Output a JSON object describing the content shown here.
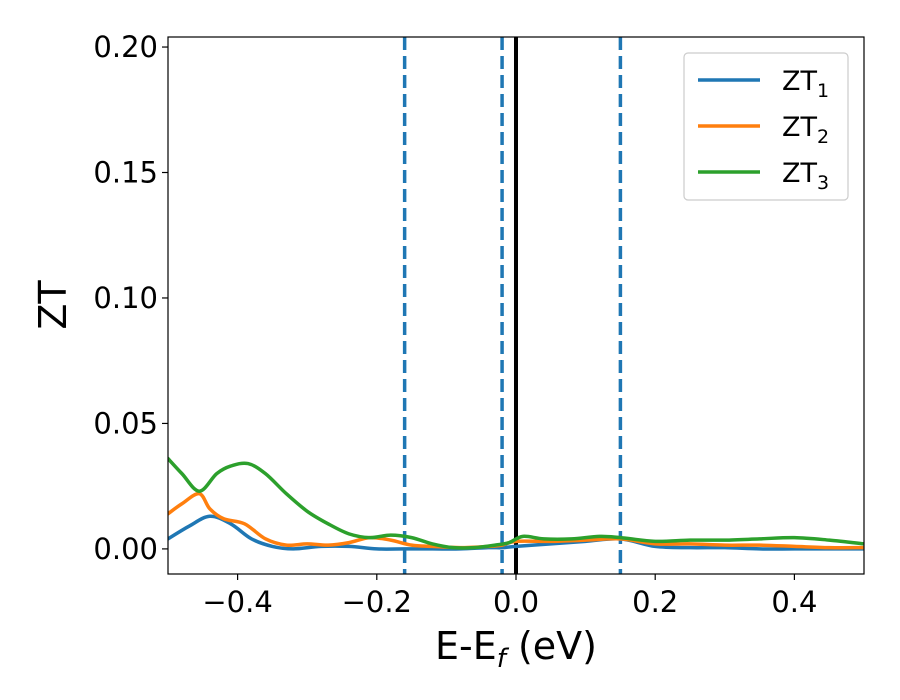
{
  "chart_data": {
    "type": "line",
    "xlabel": "E-E",
    "xlabel_sub": "f",
    "xlabel_unit": " (eV)",
    "ylabel": "ZT",
    "xlim": [
      -0.5,
      0.5
    ],
    "ylim": [
      -0.01,
      0.204
    ],
    "xticks": [
      -0.4,
      -0.2,
      0.0,
      0.2,
      0.4
    ],
    "xtick_labels": [
      "−0.4",
      "−0.2",
      "0.0",
      "0.2",
      "0.4"
    ],
    "yticks": [
      0.0,
      0.05,
      0.1,
      0.15,
      0.2
    ],
    "ytick_labels": [
      "0.00",
      "0.05",
      "0.10",
      "0.15",
      "0.20"
    ],
    "grid": false,
    "legend_position": "top-right",
    "vlines": [
      {
        "x": -0.16,
        "style": "dashed",
        "color": "#1f77b4"
      },
      {
        "x": -0.02,
        "style": "dashed",
        "color": "#1f77b4"
      },
      {
        "x": 0.0,
        "style": "solid",
        "color": "#000000"
      },
      {
        "x": 0.15,
        "style": "dashed",
        "color": "#1f77b4"
      }
    ],
    "series": [
      {
        "name": "ZT",
        "sub": "1",
        "color": "#1f77b4",
        "x": [
          -0.5,
          -0.47,
          -0.44,
          -0.41,
          -0.38,
          -0.35,
          -0.32,
          -0.28,
          -0.24,
          -0.2,
          -0.16,
          -0.12,
          -0.08,
          -0.04,
          -0.02,
          0.0,
          0.05,
          0.1,
          0.15,
          0.2,
          0.25,
          0.3,
          0.35,
          0.4,
          0.45,
          0.5
        ],
        "y": [
          0.004,
          0.009,
          0.013,
          0.01,
          0.004,
          0.001,
          0.0,
          0.001,
          0.001,
          0.0,
          0.0,
          0.0,
          0.0,
          0.0005,
          0.0005,
          0.001,
          0.002,
          0.003,
          0.004,
          0.001,
          0.0005,
          0.0005,
          0.0,
          0.0,
          0.0,
          0.0
        ]
      },
      {
        "name": "ZT",
        "sub": "2",
        "color": "#ff7f0e",
        "x": [
          -0.5,
          -0.48,
          -0.455,
          -0.44,
          -0.42,
          -0.39,
          -0.36,
          -0.33,
          -0.3,
          -0.27,
          -0.24,
          -0.21,
          -0.18,
          -0.15,
          -0.12,
          -0.08,
          -0.04,
          -0.02,
          0.0,
          0.05,
          0.1,
          0.15,
          0.2,
          0.25,
          0.3,
          0.35,
          0.4,
          0.45,
          0.5
        ],
        "y": [
          0.014,
          0.018,
          0.022,
          0.016,
          0.012,
          0.01,
          0.004,
          0.0015,
          0.002,
          0.0015,
          0.0025,
          0.0045,
          0.0035,
          0.0015,
          0.001,
          0.0005,
          0.001,
          0.0015,
          0.003,
          0.003,
          0.0035,
          0.004,
          0.002,
          0.002,
          0.0015,
          0.0015,
          0.001,
          0.0005,
          0.0005
        ]
      },
      {
        "name": "ZT",
        "sub": "3",
        "color": "#2ca02c",
        "x": [
          -0.5,
          -0.48,
          -0.455,
          -0.43,
          -0.41,
          -0.385,
          -0.36,
          -0.33,
          -0.3,
          -0.27,
          -0.24,
          -0.21,
          -0.18,
          -0.15,
          -0.12,
          -0.09,
          -0.06,
          -0.03,
          -0.01,
          0.01,
          0.04,
          0.08,
          0.12,
          0.15,
          0.2,
          0.25,
          0.3,
          0.35,
          0.4,
          0.45,
          0.5
        ],
        "y": [
          0.036,
          0.03,
          0.023,
          0.03,
          0.033,
          0.034,
          0.03,
          0.022,
          0.015,
          0.01,
          0.006,
          0.0045,
          0.0055,
          0.0045,
          0.002,
          0.0005,
          0.0005,
          0.0015,
          0.0025,
          0.005,
          0.004,
          0.004,
          0.005,
          0.0045,
          0.003,
          0.0035,
          0.0035,
          0.004,
          0.0045,
          0.0035,
          0.002
        ]
      }
    ]
  }
}
